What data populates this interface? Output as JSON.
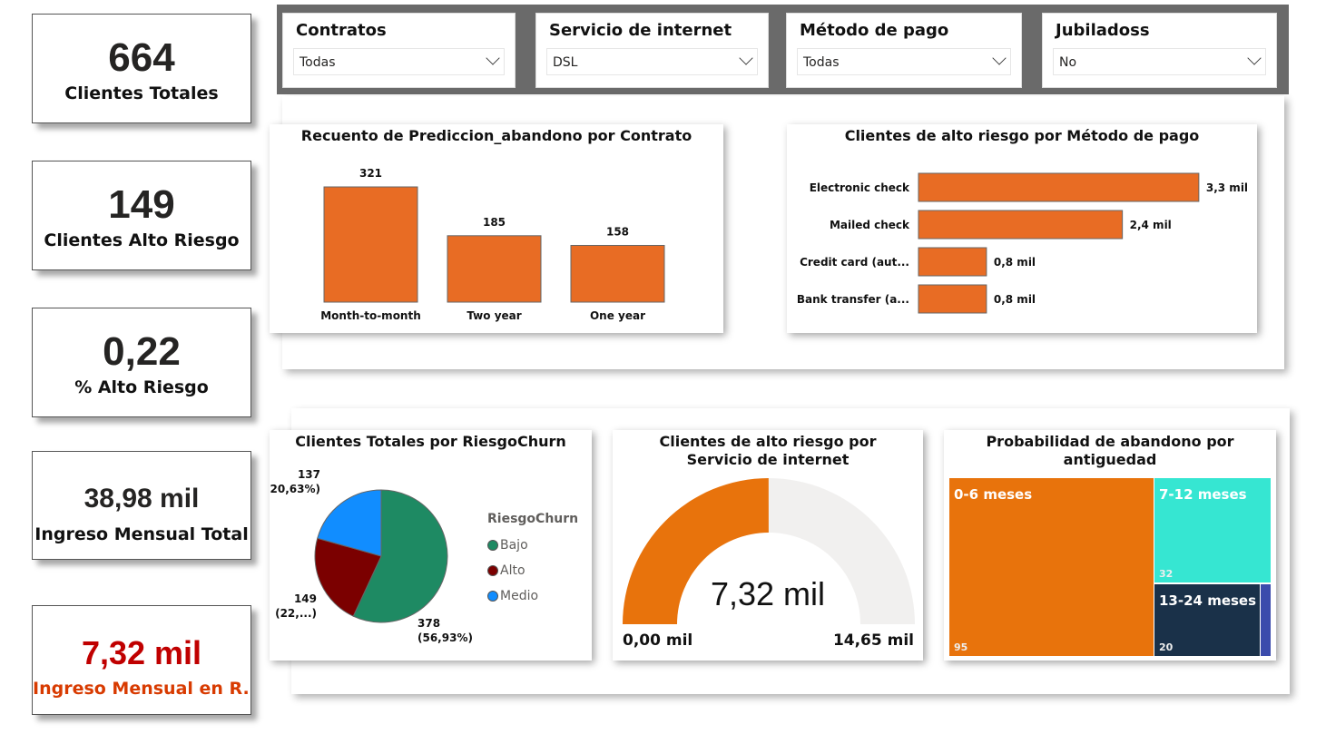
{
  "kpis": [
    {
      "value": "664",
      "label": "Clientes Totales",
      "color": "#252423"
    },
    {
      "value": "149",
      "label": "Clientes Alto Riesgo",
      "color": "#252423"
    },
    {
      "value": "0,22",
      "label": "% Alto Riesgo",
      "color": "#252423"
    },
    {
      "value": "38,98 mil",
      "label": "Ingreso Mensual Total",
      "color": "#252423"
    },
    {
      "value": "7,32 mil",
      "label": "Ingreso Mensual en R...",
      "color": "#c00000",
      "label_color": "#d83b01"
    }
  ],
  "slicers": [
    {
      "title": "Contratos",
      "value": "Todas"
    },
    {
      "title": "Servicio de internet",
      "value": "DSL"
    },
    {
      "title": "Método de pago",
      "value": "Todas"
    },
    {
      "title": "Jubiladoss",
      "value": "No"
    }
  ],
  "chart_data": [
    {
      "type": "bar",
      "title": "Recuento de Prediccion_abandono por Contrato",
      "categories": [
        "Month-to-month",
        "Two year",
        "One year"
      ],
      "values": [
        321,
        185,
        158
      ],
      "data_labels": [
        "321",
        "185",
        "158"
      ],
      "color": "#e86c24"
    },
    {
      "type": "bar",
      "orientation": "horizontal",
      "title": "Clientes de alto riesgo por Método de pago",
      "categories": [
        "Electronic check",
        "Mailed check",
        "Credit card (aut...",
        "Bank transfer (a..."
      ],
      "values": [
        3.3,
        2.4,
        0.8,
        0.8
      ],
      "data_labels": [
        "3,3 mil",
        "2,4 mil",
        "0,8 mil",
        "0,8 mil"
      ],
      "color": "#e86c24"
    },
    {
      "type": "pie",
      "title": "Clientes Totales por RiesgoChurn",
      "legend_title": "RiesgoChurn",
      "legend_position": "right",
      "slices": [
        {
          "name": "Bajo",
          "value": 378,
          "label": "378",
          "pct": "(56,93%)",
          "color": "#1e8a63"
        },
        {
          "name": "Alto",
          "value": 149,
          "label": "149",
          "pct": "(22,...)",
          "color": "#7b0000"
        },
        {
          "name": "Medio",
          "value": 137,
          "label": "137",
          "pct": "(20,63%)",
          "color": "#118dff"
        }
      ]
    },
    {
      "type": "gauge",
      "title_line1": "Clientes de alto riesgo por",
      "title_line2": "Servicio de internet",
      "value": 7.32,
      "min": 0,
      "max": 14.65,
      "value_label": "7,32 mil",
      "min_label": "0,00 mil",
      "max_label": "14,65 mil",
      "fill_color": "#e8730c",
      "track_color": "#f1f0ef"
    },
    {
      "type": "treemap",
      "title_line1": "Probabilidad de abandono por",
      "title_line2": "antiguedad",
      "items": [
        {
          "name": "0-6 meses",
          "value": 95,
          "label": "95",
          "color": "#e8730c"
        },
        {
          "name": "7-12 meses",
          "value": 32,
          "label": "32",
          "color": "#36e6d2"
        },
        {
          "name": "13-24 meses",
          "value": 20,
          "label": "20",
          "color": "#1a3149"
        },
        {
          "name": "",
          "value": 2,
          "color": "#3b4bac"
        }
      ]
    }
  ]
}
